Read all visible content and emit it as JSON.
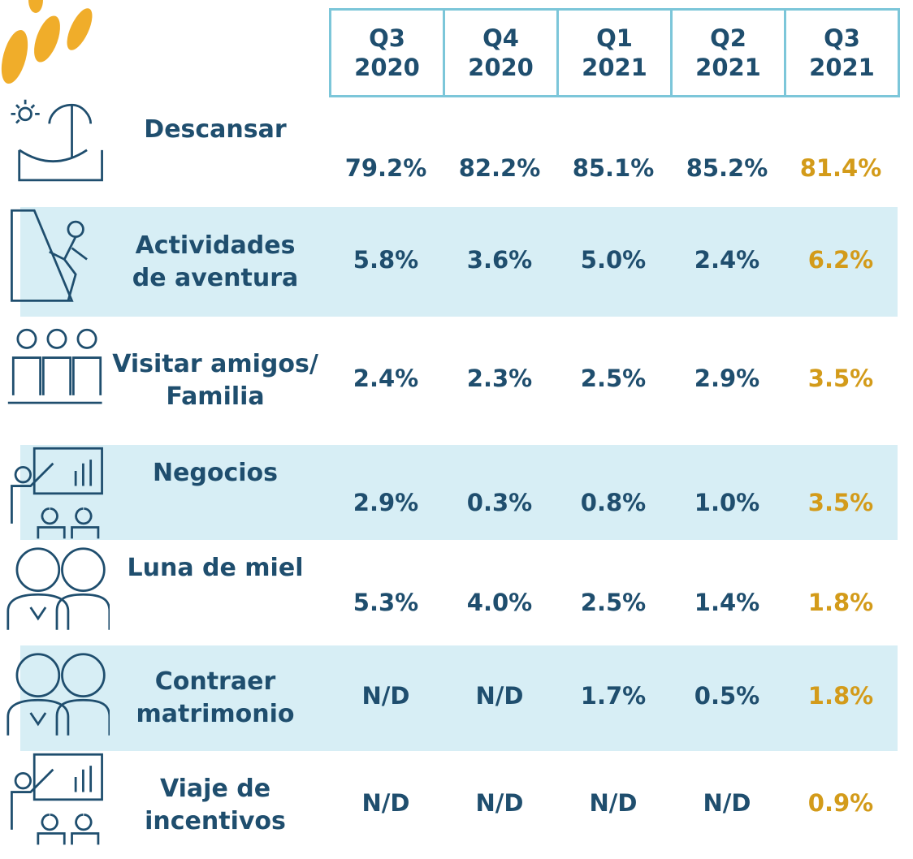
{
  "table": {
    "columns": [
      "Q3\n2020",
      "Q4\n2020",
      "Q1\n2021",
      "Q2\n2021",
      "Q3\n2021"
    ],
    "rows": [
      {
        "label": "Descansar",
        "values": [
          "79.2%",
          "82.2%",
          "85.1%",
          "85.2%",
          "81.4%"
        ]
      },
      {
        "label": "Actividades\nde aventura",
        "values": [
          "5.8%",
          "3.6%",
          "5.0%",
          "2.4%",
          "6.2%"
        ]
      },
      {
        "label": "Visitar amigos/\nFamilia",
        "values": [
          "2.4%",
          "2.3%",
          "2.5%",
          "2.9%",
          "3.5%"
        ]
      },
      {
        "label": "Negocios",
        "values": [
          "2.9%",
          "0.3%",
          "0.8%",
          "1.0%",
          "3.5%"
        ]
      },
      {
        "label": "Luna de miel",
        "values": [
          "5.3%",
          "4.0%",
          "2.5%",
          "1.4%",
          "1.8%"
        ]
      },
      {
        "label": "Contraer\nmatrimonio",
        "values": [
          "N/D",
          "N/D",
          "1.7%",
          "0.5%",
          "1.8%"
        ]
      },
      {
        "label": "Viaje de\nincentivos",
        "values": [
          "N/D",
          "N/D",
          "N/D",
          "N/D",
          "0.9%"
        ]
      }
    ]
  }
}
